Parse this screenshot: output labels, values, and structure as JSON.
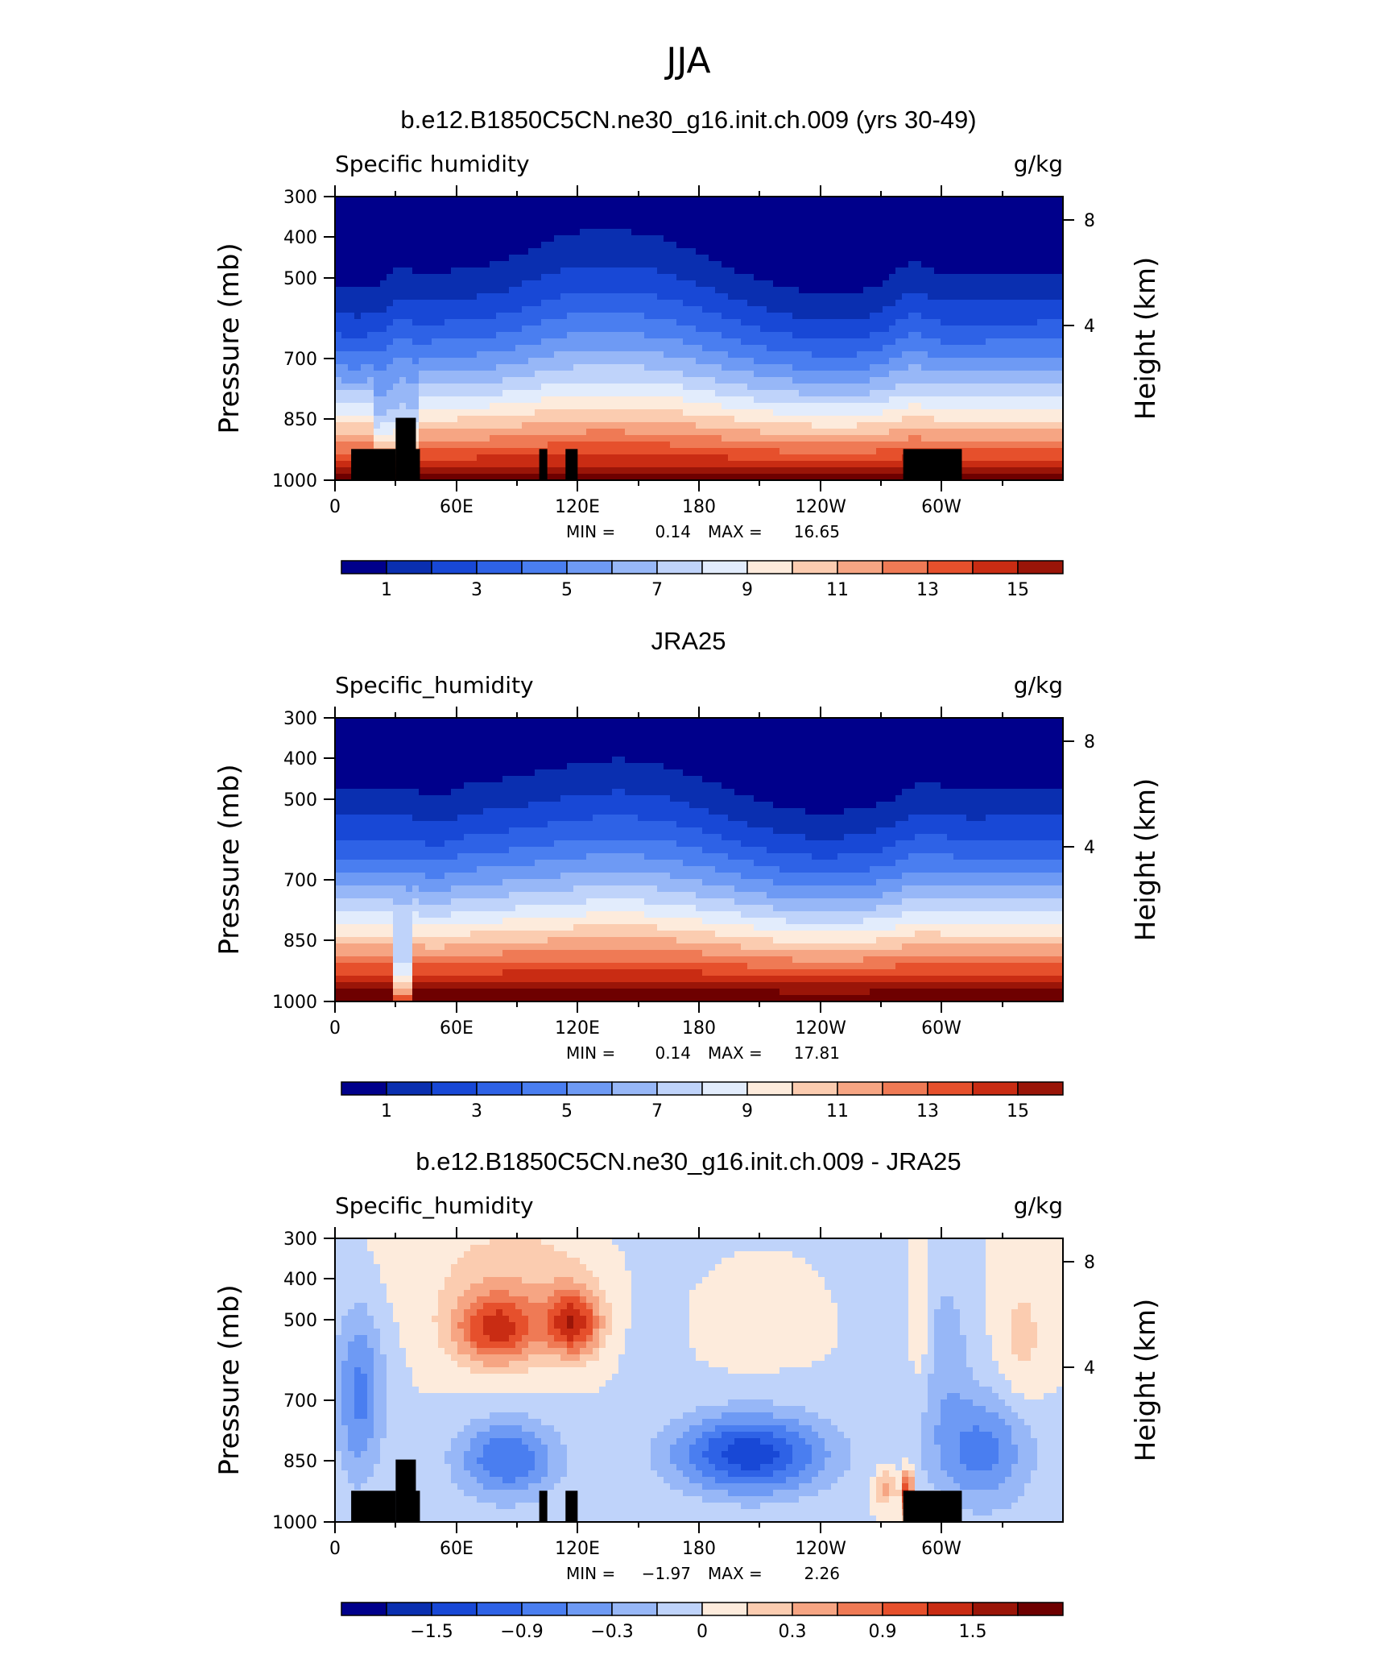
{
  "page_title": "JJA",
  "axes": {
    "y_label_left": "Pressure (mb)",
    "y_label_right": "Height (km)",
    "y_ticks_left": [
      "300",
      "400",
      "500",
      "700",
      "850",
      "1000"
    ],
    "y_ticks_right": [
      "8",
      "4"
    ],
    "x_ticks": [
      "0",
      "60E",
      "120E",
      "180",
      "120W",
      "60W"
    ]
  },
  "colors": {
    "palette": [
      "#00008b",
      "#0a2fb0",
      "#1848d6",
      "#2e62e6",
      "#4a7ef0",
      "#6e9af4",
      "#97b7f7",
      "#bfd3fa",
      "#e2ecfc",
      "#fdebdc",
      "#fbccb0",
      "#f6a583",
      "#ef7a55",
      "#e6502c",
      "#c92c13",
      "#9a1508",
      "#6e0000"
    ]
  },
  "chart_data": [
    {
      "type": "heatmap",
      "title": "b.e12.B1850C5CN.ne30_g16.init.ch.009 (yrs 30-49)",
      "left_string": "Specific humidity",
      "right_string": "g/kg",
      "min_label": "MIN =",
      "min_value": "0.14",
      "max_label": "MAX =",
      "max_value": "16.65",
      "colorbar_labels": [
        "1",
        "3",
        "5",
        "7",
        "9",
        "11",
        "13",
        "15"
      ],
      "xlim": [
        0,
        360
      ],
      "ylim": [
        1000,
        300
      ],
      "contour_levels": [
        0,
        1,
        2,
        3,
        4,
        5,
        6,
        7,
        8,
        9,
        10,
        11,
        12,
        13,
        14,
        15,
        16
      ],
      "topography": true
    },
    {
      "type": "heatmap",
      "title": "JRA25",
      "left_string": "Specific_humidity",
      "right_string": "g/kg",
      "min_label": "MIN =",
      "min_value": "0.14",
      "max_label": "MAX =",
      "max_value": "17.81",
      "colorbar_labels": [
        "1",
        "3",
        "5",
        "7",
        "9",
        "11",
        "13",
        "15"
      ],
      "xlim": [
        0,
        360
      ],
      "ylim": [
        1000,
        300
      ],
      "contour_levels": [
        0,
        1,
        2,
        3,
        4,
        5,
        6,
        7,
        8,
        9,
        10,
        11,
        12,
        13,
        14,
        15,
        16
      ],
      "topography": false
    },
    {
      "type": "heatmap",
      "title": "b.e12.B1850C5CN.ne30_g16.init.ch.009 - JRA25",
      "left_string": "Specific_humidity",
      "right_string": "g/kg",
      "min_label": "MIN =",
      "min_value": "−1.97",
      "max_label": "MAX =",
      "max_value": "2.26",
      "colorbar_labels": [
        "−1.5",
        "−0.9",
        "−0.3",
        "0",
        "0.3",
        "0.9",
        "1.5"
      ],
      "xlim": [
        0,
        360
      ],
      "ylim": [
        1000,
        300
      ],
      "contour_levels": [
        -2.1,
        -1.8,
        -1.5,
        -1.2,
        -0.9,
        -0.6,
        -0.3,
        0,
        0.3,
        0.6,
        0.9,
        1.2,
        1.5,
        1.8,
        2.1
      ],
      "topography": true
    }
  ]
}
